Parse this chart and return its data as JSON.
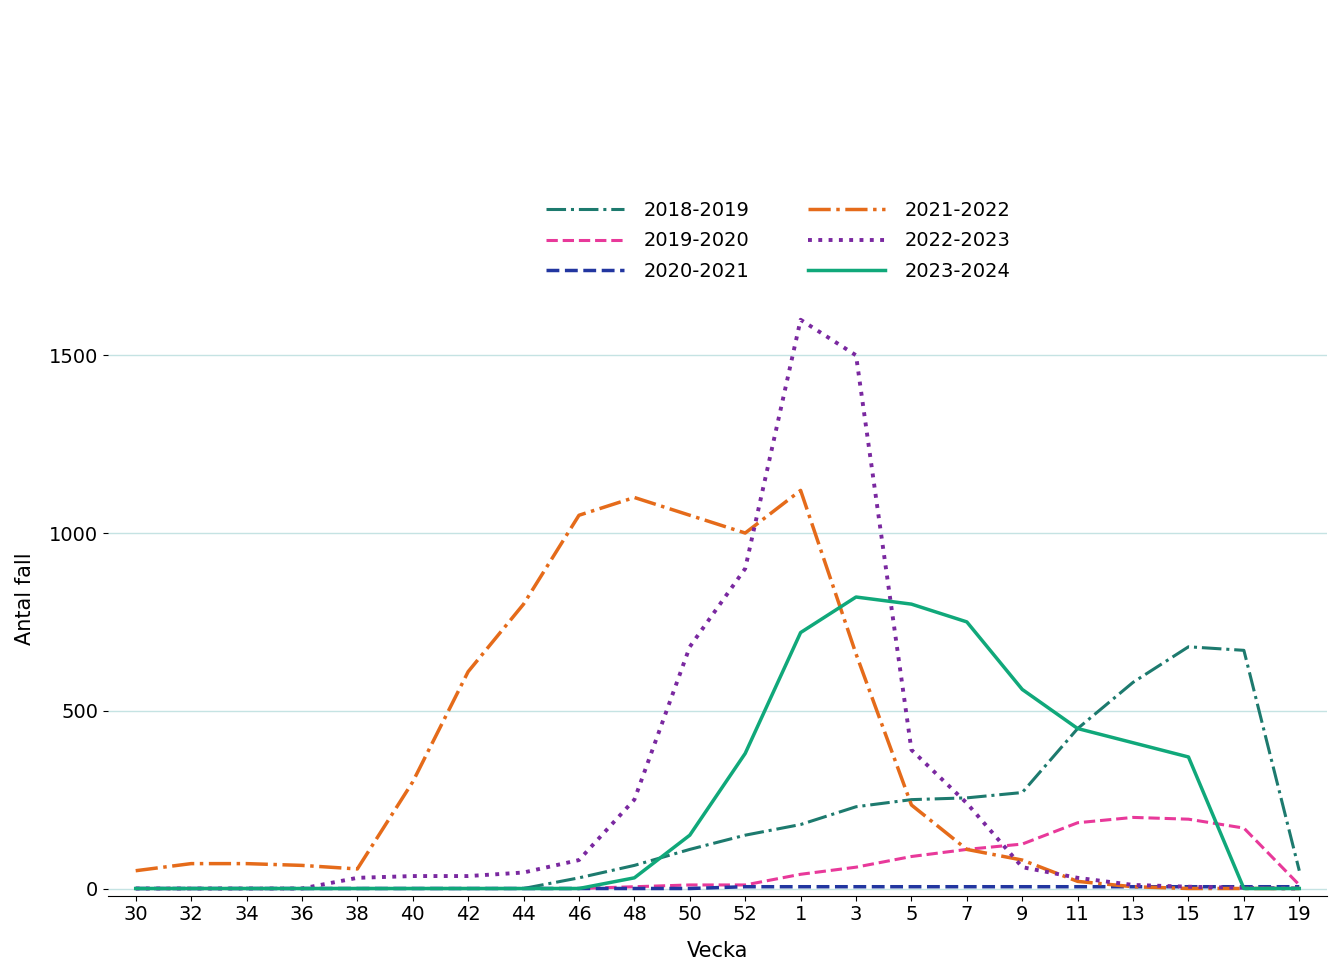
{
  "ylabel": "Antal fall",
  "xlabel": "Vecka",
  "x_tick_labels": [
    "30",
    "32",
    "34",
    "36",
    "38",
    "40",
    "42",
    "44",
    "46",
    "48",
    "50",
    "52",
    "1",
    "3",
    "5",
    "7",
    "9",
    "11",
    "13",
    "15",
    "17",
    "19"
  ],
  "ylim": [
    -20,
    1650
  ],
  "yticks": [
    0,
    500,
    1000,
    1500
  ],
  "background_color": "#FFFFFF",
  "grid_color": "#C5E3E3",
  "grid_alpha": 1.0,
  "legend_order": [
    "2018-2019",
    "2019-2020",
    "2020-2021",
    "2021-2022",
    "2022-2023",
    "2023-2024"
  ],
  "series": {
    "2018-2019": {
      "color": "#1D7A6E",
      "linestyle": "-.",
      "linewidth": 2.2,
      "y": [
        0,
        0,
        0,
        0,
        0,
        0,
        0,
        0,
        30,
        65,
        110,
        150,
        180,
        230,
        250,
        255,
        270,
        450,
        580,
        680,
        670,
        50
      ]
    },
    "2019-2020": {
      "color": "#E8399A",
      "linestyle": "--",
      "linewidth": 2.2,
      "y": [
        0,
        0,
        0,
        0,
        0,
        0,
        0,
        0,
        0,
        5,
        10,
        10,
        40,
        60,
        90,
        110,
        125,
        185,
        200,
        195,
        170,
        10
      ]
    },
    "2020-2021": {
      "color": "#2236A0",
      "linestyle": "--",
      "linewidth": 2.5,
      "y": [
        0,
        0,
        0,
        0,
        0,
        0,
        0,
        0,
        0,
        0,
        0,
        5,
        5,
        5,
        5,
        5,
        5,
        5,
        5,
        5,
        5,
        5
      ]
    },
    "2021-2022": {
      "color": "#E56B1A",
      "linestyle": "-.",
      "linewidth": 2.5,
      "y": [
        50,
        70,
        70,
        65,
        55,
        300,
        610,
        800,
        1050,
        1100,
        1050,
        1000,
        1120,
        660,
        235,
        110,
        80,
        20,
        5,
        0,
        0,
        0
      ]
    },
    "2022-2023": {
      "color": "#7A28A0",
      "linestyle": ":",
      "linewidth": 2.8,
      "y": [
        0,
        0,
        0,
        0,
        30,
        35,
        35,
        45,
        80,
        250,
        680,
        900,
        1600,
        1500,
        390,
        240,
        60,
        30,
        10,
        5,
        2,
        0
      ]
    },
    "2023-2024": {
      "color": "#10A87A",
      "linestyle": "-",
      "linewidth": 2.5,
      "y": [
        0,
        0,
        0,
        0,
        0,
        0,
        0,
        0,
        0,
        30,
        150,
        380,
        720,
        820,
        800,
        750,
        560,
        450,
        410,
        370,
        0,
        0
      ]
    }
  }
}
